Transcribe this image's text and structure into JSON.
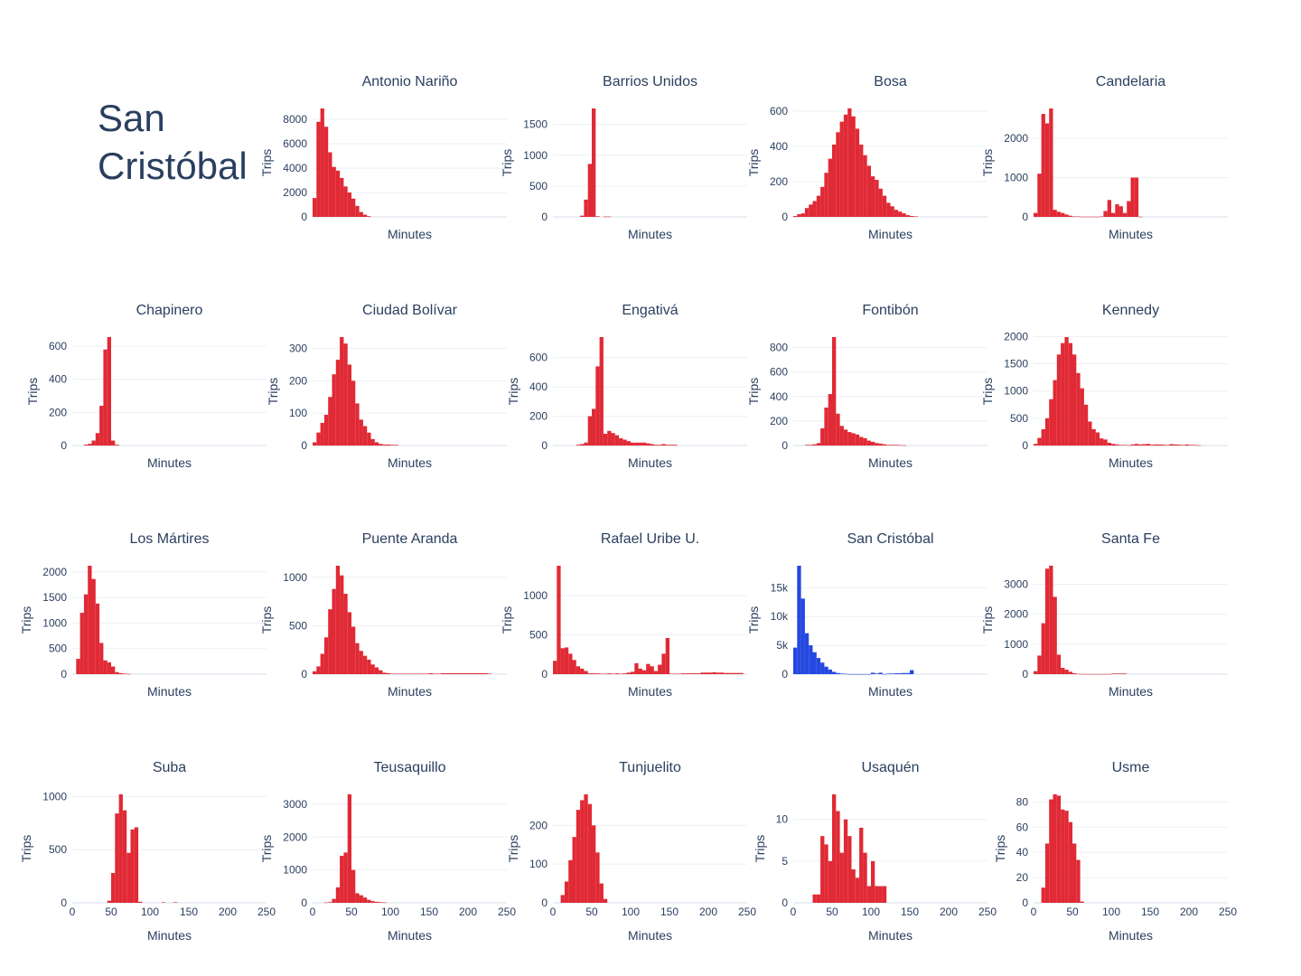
{
  "page": {
    "title": "San Cristóbal"
  },
  "colors": {
    "default_bar": "#e02a35",
    "highlight_bar": "#2548e0",
    "grid": "#ebeff5",
    "text": "#2a3f5f"
  },
  "axis_labels": {
    "x": "Minutes",
    "y": "Trips"
  },
  "x_axis": {
    "range": [
      0,
      250
    ],
    "ticks": [
      0,
      50,
      100,
      150,
      200,
      250
    ]
  },
  "chart_data": [
    {
      "type": "bar",
      "title": "Antonio Nariño",
      "xlabel": "Minutes",
      "ylabel": "Trips",
      "xlim": [
        0,
        250
      ],
      "ylim": [
        0,
        8900
      ],
      "yticks": [
        0,
        2000,
        4000,
        6000,
        8000
      ],
      "ytick_labels": [
        "0",
        "2000",
        "4000",
        "6000",
        "8000"
      ],
      "bin_width": 5,
      "x": [
        0,
        5,
        10,
        15,
        20,
        25,
        30,
        35,
        40,
        45,
        50,
        55,
        60,
        65,
        70
      ],
      "values": [
        1550,
        7800,
        8900,
        7400,
        5300,
        4100,
        3800,
        3200,
        2500,
        2000,
        1500,
        900,
        400,
        180,
        60
      ]
    },
    {
      "type": "bar",
      "title": "Barrios Unidos",
      "xlabel": "Minutes",
      "ylabel": "Trips",
      "xlim": [
        0,
        250
      ],
      "ylim": [
        0,
        1760
      ],
      "yticks": [
        0,
        500,
        1000,
        1500
      ],
      "ytick_labels": [
        "0",
        "500",
        "1000",
        "1500"
      ],
      "bin_width": 5,
      "x": [
        35,
        40,
        45,
        50,
        55,
        65,
        70
      ],
      "values": [
        20,
        280,
        860,
        1760,
        10,
        5,
        5
      ]
    },
    {
      "type": "bar",
      "title": "Bosa",
      "xlabel": "Minutes",
      "ylabel": "Trips",
      "xlim": [
        0,
        250
      ],
      "ylim": [
        0,
        615
      ],
      "yticks": [
        0,
        200,
        400,
        600
      ],
      "ytick_labels": [
        "0",
        "200",
        "400",
        "600"
      ],
      "bin_width": 5,
      "x": [
        0,
        5,
        10,
        15,
        20,
        25,
        30,
        35,
        40,
        45,
        50,
        55,
        60,
        65,
        70,
        75,
        80,
        85,
        90,
        95,
        100,
        105,
        110,
        115,
        120,
        125,
        130,
        135,
        140,
        145,
        150,
        155
      ],
      "values": [
        5,
        15,
        20,
        50,
        70,
        90,
        120,
        170,
        250,
        330,
        410,
        480,
        540,
        580,
        615,
        570,
        500,
        410,
        350,
        290,
        230,
        210,
        160,
        120,
        80,
        60,
        40,
        30,
        20,
        10,
        5,
        3
      ]
    },
    {
      "type": "bar",
      "title": "Candelaria",
      "xlabel": "Minutes",
      "ylabel": "Trips",
      "xlim": [
        0,
        250
      ],
      "ylim": [
        0,
        2760
      ],
      "yticks": [
        0,
        1000,
        2000
      ],
      "ytick_labels": [
        "0",
        "1000",
        "2000"
      ],
      "bin_width": 5,
      "x": [
        0,
        5,
        10,
        15,
        20,
        25,
        30,
        35,
        40,
        45,
        50,
        55,
        60,
        65,
        70,
        75,
        80,
        85,
        90,
        95,
        100,
        105,
        110,
        115,
        120,
        125,
        130,
        135
      ],
      "values": [
        100,
        1100,
        2620,
        2380,
        2760,
        180,
        130,
        100,
        60,
        30,
        10,
        10,
        5,
        5,
        5,
        5,
        5,
        10,
        150,
        430,
        100,
        320,
        270,
        100,
        400,
        1000,
        1000,
        5
      ]
    },
    {
      "type": "bar",
      "title": "Chapinero",
      "xlabel": "Minutes",
      "ylabel": "Trips",
      "xlim": [
        0,
        250
      ],
      "ylim": [
        0,
        655
      ],
      "yticks": [
        0,
        200,
        400,
        600
      ],
      "ytick_labels": [
        "0",
        "200",
        "400",
        "600"
      ],
      "bin_width": 5,
      "x": [
        15,
        20,
        25,
        30,
        35,
        40,
        45,
        50,
        55
      ],
      "values": [
        5,
        10,
        30,
        75,
        240,
        580,
        655,
        30,
        5
      ]
    },
    {
      "type": "bar",
      "title": "Ciudad Bolívar",
      "xlabel": "Minutes",
      "ylabel": "Trips",
      "xlim": [
        0,
        250
      ],
      "ylim": [
        0,
        335
      ],
      "yticks": [
        0,
        100,
        200,
        300
      ],
      "ytick_labels": [
        "0",
        "100",
        "200",
        "300"
      ],
      "bin_width": 5,
      "x": [
        0,
        5,
        10,
        15,
        20,
        25,
        30,
        35,
        40,
        45,
        50,
        55,
        60,
        65,
        70,
        75,
        80,
        85,
        90,
        95,
        100,
        105
      ],
      "values": [
        10,
        40,
        70,
        95,
        150,
        220,
        265,
        335,
        315,
        250,
        200,
        130,
        80,
        60,
        40,
        20,
        10,
        5,
        3,
        3,
        2,
        2
      ]
    },
    {
      "type": "bar",
      "title": "Engativá",
      "xlabel": "Minutes",
      "ylabel": "Trips",
      "xlim": [
        0,
        250
      ],
      "ylim": [
        0,
        740
      ],
      "yticks": [
        0,
        200,
        400,
        600
      ],
      "ytick_labels": [
        "0",
        "200",
        "400",
        "600"
      ],
      "bin_width": 5,
      "x": [
        30,
        35,
        40,
        45,
        50,
        55,
        60,
        65,
        70,
        75,
        80,
        85,
        90,
        95,
        100,
        105,
        110,
        115,
        120,
        125,
        130,
        135,
        140,
        145,
        150,
        155
      ],
      "values": [
        5,
        10,
        20,
        200,
        250,
        540,
        740,
        80,
        100,
        85,
        70,
        50,
        40,
        30,
        20,
        20,
        20,
        20,
        15,
        10,
        5,
        5,
        10,
        5,
        5,
        5
      ]
    },
    {
      "type": "bar",
      "title": "Fontibón",
      "xlabel": "Minutes",
      "ylabel": "Trips",
      "xlim": [
        0,
        250
      ],
      "ylim": [
        0,
        885
      ],
      "yticks": [
        0,
        200,
        400,
        600,
        800
      ],
      "ytick_labels": [
        "0",
        "200",
        "400",
        "600",
        "800"
      ],
      "bin_width": 5,
      "x": [
        15,
        20,
        25,
        30,
        35,
        40,
        45,
        50,
        55,
        60,
        65,
        70,
        75,
        80,
        85,
        90,
        95,
        100,
        105,
        110,
        115,
        120,
        125,
        130,
        135,
        140
      ],
      "values": [
        5,
        5,
        10,
        20,
        140,
        310,
        420,
        885,
        260,
        160,
        130,
        110,
        100,
        90,
        70,
        60,
        40,
        30,
        20,
        15,
        10,
        5,
        5,
        5,
        3,
        2
      ]
    },
    {
      "type": "bar",
      "title": "Kennedy",
      "xlabel": "Minutes",
      "ylabel": "Trips",
      "xlim": [
        0,
        250
      ],
      "ylim": [
        0,
        1990
      ],
      "yticks": [
        0,
        500,
        1000,
        1500,
        2000
      ],
      "ytick_labels": [
        "0",
        "500",
        "1000",
        "1500",
        "2000"
      ],
      "bin_width": 5,
      "x": [
        0,
        5,
        10,
        15,
        20,
        25,
        30,
        35,
        40,
        45,
        50,
        55,
        60,
        65,
        70,
        75,
        80,
        85,
        90,
        95,
        100,
        105,
        110,
        115,
        120,
        125,
        130,
        135,
        140,
        145,
        150,
        155,
        160,
        165,
        170,
        175,
        180,
        185,
        190,
        195,
        200,
        205,
        210
      ],
      "values": [
        30,
        140,
        300,
        500,
        850,
        1200,
        1670,
        1880,
        1990,
        1880,
        1670,
        1330,
        1050,
        750,
        440,
        300,
        240,
        130,
        110,
        50,
        30,
        20,
        10,
        10,
        5,
        20,
        30,
        20,
        25,
        30,
        15,
        20,
        20,
        15,
        10,
        25,
        20,
        15,
        10,
        20,
        10,
        10,
        5
      ]
    },
    {
      "type": "bar",
      "title": "Los Mártires",
      "xlabel": "Minutes",
      "ylabel": "Trips",
      "xlim": [
        0,
        250
      ],
      "ylim": [
        0,
        2120
      ],
      "yticks": [
        0,
        500,
        1000,
        1500,
        2000
      ],
      "ytick_labels": [
        "0",
        "500",
        "1000",
        "1500",
        "2000"
      ],
      "bin_width": 5,
      "x": [
        5,
        10,
        15,
        20,
        25,
        30,
        35,
        40,
        45,
        50,
        55,
        60,
        65,
        70
      ],
      "values": [
        300,
        1200,
        1560,
        2120,
        1860,
        1380,
        610,
        270,
        230,
        150,
        40,
        20,
        10,
        5
      ]
    },
    {
      "type": "bar",
      "title": "Puente Aranda",
      "xlabel": "Minutes",
      "ylabel": "Trips",
      "xlim": [
        0,
        250
      ],
      "ylim": [
        0,
        1120
      ],
      "yticks": [
        0,
        500,
        1000
      ],
      "ytick_labels": [
        "0",
        "500",
        "1000"
      ],
      "bin_width": 5,
      "x": [
        0,
        5,
        10,
        15,
        20,
        25,
        30,
        35,
        40,
        45,
        50,
        55,
        60,
        65,
        70,
        75,
        80,
        85,
        90,
        95,
        100,
        105,
        110,
        115,
        120,
        125,
        130,
        135,
        140,
        145,
        150,
        155,
        160,
        165,
        170,
        175,
        180,
        185,
        190,
        195,
        200,
        205,
        210,
        215,
        220,
        225
      ],
      "values": [
        30,
        80,
        210,
        380,
        670,
        880,
        1120,
        1020,
        830,
        640,
        490,
        320,
        240,
        190,
        150,
        100,
        70,
        40,
        15,
        10,
        5,
        5,
        5,
        5,
        5,
        5,
        5,
        5,
        5,
        5,
        10,
        5,
        5,
        10,
        10,
        10,
        10,
        10,
        10,
        10,
        10,
        10,
        10,
        10,
        10,
        5
      ]
    },
    {
      "type": "bar",
      "title": "Rafael Uribe U.",
      "xlabel": "Minutes",
      "ylabel": "Trips",
      "xlim": [
        0,
        250
      ],
      "ylim": [
        0,
        1380
      ],
      "yticks": [
        0,
        500,
        1000
      ],
      "ytick_labels": [
        "0",
        "500",
        "1000"
      ],
      "bin_width": 5,
      "x": [
        0,
        5,
        10,
        15,
        20,
        25,
        30,
        35,
        40,
        45,
        50,
        55,
        60,
        65,
        70,
        75,
        80,
        85,
        90,
        95,
        100,
        105,
        110,
        115,
        120,
        125,
        130,
        135,
        140,
        145,
        150,
        155,
        160,
        165,
        170,
        175,
        180,
        185,
        190,
        195,
        200,
        205,
        210,
        215,
        220,
        225,
        230,
        235,
        240
      ],
      "values": [
        170,
        1380,
        330,
        340,
        260,
        180,
        100,
        70,
        40,
        10,
        10,
        10,
        5,
        5,
        10,
        5,
        10,
        5,
        10,
        20,
        30,
        140,
        70,
        50,
        130,
        100,
        40,
        120,
        260,
        460,
        5,
        5,
        5,
        10,
        10,
        10,
        10,
        10,
        20,
        20,
        20,
        25,
        20,
        20,
        15,
        15,
        15,
        15,
        15
      ]
    },
    {
      "type": "bar",
      "title": "San Cristóbal",
      "highlight": true,
      "xlabel": "Minutes",
      "ylabel": "Trips",
      "xlim": [
        0,
        250
      ],
      "ylim": [
        0,
        18800
      ],
      "yticks": [
        0,
        5000,
        10000,
        15000
      ],
      "ytick_labels": [
        "0",
        "5k",
        "10k",
        "15k"
      ],
      "bin_width": 5,
      "x": [
        0,
        5,
        10,
        15,
        20,
        25,
        30,
        35,
        40,
        45,
        50,
        55,
        60,
        65,
        70,
        75,
        80,
        85,
        90,
        95,
        100,
        105,
        110,
        115,
        120,
        125,
        130,
        135,
        140,
        145,
        150
      ],
      "values": [
        4600,
        18800,
        13100,
        7100,
        5000,
        3800,
        2800,
        2000,
        1300,
        800,
        400,
        200,
        100,
        50,
        20,
        10,
        10,
        10,
        10,
        10,
        250,
        100,
        250,
        10,
        100,
        100,
        150,
        150,
        200,
        200,
        700
      ]
    },
    {
      "type": "bar",
      "title": "Santa Fe",
      "xlabel": "Minutes",
      "ylabel": "Trips",
      "xlim": [
        0,
        250
      ],
      "ylim": [
        0,
        3620
      ],
      "yticks": [
        0,
        1000,
        2000,
        3000
      ],
      "ytick_labels": [
        "0",
        "1000",
        "2000",
        "3000"
      ],
      "bin_width": 5,
      "x": [
        0,
        5,
        10,
        15,
        20,
        25,
        30,
        35,
        40,
        45,
        50,
        55,
        60,
        65,
        70,
        75,
        80,
        85,
        90,
        95,
        100,
        105,
        110,
        115
      ],
      "values": [
        100,
        620,
        1700,
        3520,
        3620,
        2580,
        650,
        210,
        150,
        80,
        30,
        10,
        5,
        5,
        5,
        5,
        5,
        5,
        5,
        5,
        20,
        20,
        20,
        20
      ]
    },
    {
      "type": "bar",
      "title": "Suba",
      "xlabel": "Minutes",
      "ylabel": "Trips",
      "xlim": [
        0,
        250
      ],
      "ylim": [
        0,
        1020
      ],
      "yticks": [
        0,
        500,
        1000
      ],
      "ytick_labels": [
        "0",
        "500",
        "1000"
      ],
      "bin_width": 5,
      "x": [
        45,
        50,
        55,
        60,
        65,
        70,
        75,
        80,
        85,
        115,
        130
      ],
      "values": [
        20,
        280,
        840,
        1020,
        870,
        470,
        690,
        710,
        10,
        5,
        5
      ]
    },
    {
      "type": "bar",
      "title": "Teusaquillo",
      "xlabel": "Minutes",
      "ylabel": "Trips",
      "xlim": [
        0,
        250
      ],
      "ylim": [
        0,
        3300
      ],
      "yticks": [
        0,
        1000,
        2000,
        3000
      ],
      "ytick_labels": [
        "0",
        "1000",
        "2000",
        "3000"
      ],
      "bin_width": 5,
      "x": [
        15,
        20,
        25,
        30,
        35,
        40,
        45,
        50,
        55,
        60,
        65,
        70,
        75,
        80,
        85,
        90
      ],
      "values": [
        10,
        20,
        120,
        470,
        1430,
        1530,
        3300,
        1000,
        290,
        230,
        160,
        90,
        50,
        30,
        20,
        10
      ]
    },
    {
      "type": "bar",
      "title": "Tunjuelito",
      "xlabel": "Minutes",
      "ylabel": "Trips",
      "xlim": [
        0,
        250
      ],
      "ylim": [
        0,
        280
      ],
      "yticks": [
        0,
        100,
        200
      ],
      "ytick_labels": [
        "0",
        "100",
        "200"
      ],
      "bin_width": 5,
      "x": [
        10,
        15,
        20,
        25,
        30,
        35,
        40,
        45,
        50,
        55,
        60,
        65
      ],
      "values": [
        20,
        55,
        110,
        170,
        240,
        265,
        280,
        255,
        200,
        130,
        50,
        10
      ]
    },
    {
      "type": "bar",
      "title": "Usaquén",
      "xlabel": "Minutes",
      "ylabel": "Trips",
      "xlim": [
        0,
        250
      ],
      "ylim": [
        0,
        13
      ],
      "yticks": [
        0,
        5,
        10
      ],
      "ytick_labels": [
        "0",
        "5",
        "10"
      ],
      "bin_width": 5,
      "x": [
        25,
        30,
        35,
        40,
        45,
        50,
        55,
        60,
        65,
        70,
        75,
        80,
        85,
        90,
        95,
        100,
        105,
        110,
        115
      ],
      "values": [
        1,
        1,
        8,
        7,
        5,
        13,
        11,
        6,
        10,
        8,
        4,
        3,
        9,
        6,
        2,
        5,
        2,
        2,
        2
      ]
    },
    {
      "type": "bar",
      "title": "Usme",
      "xlabel": "Minutes",
      "ylabel": "Trips",
      "xlim": [
        0,
        250
      ],
      "ylim": [
        0,
        86
      ],
      "yticks": [
        0,
        20,
        40,
        60,
        80
      ],
      "ytick_labels": [
        "0",
        "20",
        "40",
        "60",
        "80"
      ],
      "bin_width": 5,
      "x": [
        10,
        15,
        20,
        25,
        30,
        35,
        40,
        45,
        50,
        55,
        60
      ],
      "values": [
        12,
        47,
        82,
        86,
        85,
        74,
        73,
        64,
        47,
        34,
        1
      ]
    }
  ]
}
